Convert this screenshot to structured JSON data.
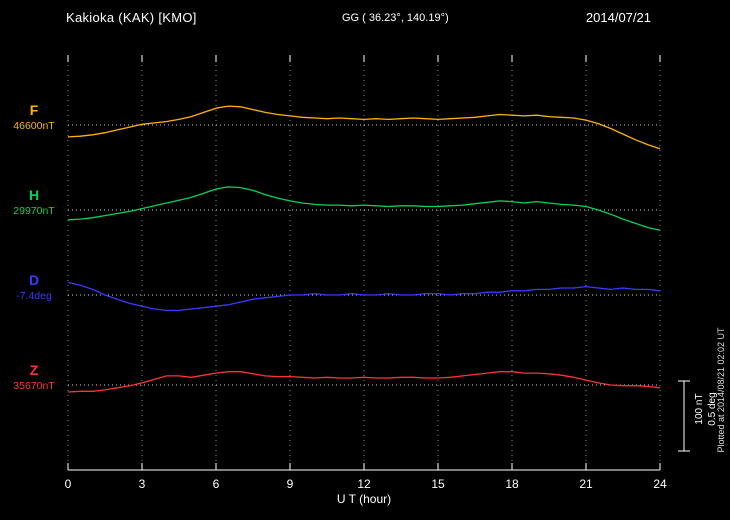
{
  "header": {
    "station": "Kakioka (KAK)  [KMO]",
    "coordinates": "GG ( 36.23°, 140.19°)",
    "date": "2014/07/21"
  },
  "axis": {
    "x_label": "U T (hour)",
    "ticks": [
      0,
      3,
      6,
      9,
      12,
      15,
      18,
      21,
      24
    ],
    "x_min": 0,
    "x_max": 24
  },
  "channels": [
    {
      "label": "F",
      "value_label": "46600nT",
      "color": "#ffb300"
    },
    {
      "label": "H",
      "value_label": "29970nT",
      "color": "#00d455"
    },
    {
      "label": "D",
      "value_label": "-7.4deg",
      "color": "#3a3aff"
    },
    {
      "label": "Z",
      "value_label": "35670nT",
      "color": "#ff3232"
    }
  ],
  "scale_bar": {
    "nt_label": "100 nT",
    "deg_label": "0.5 deg"
  },
  "footer_note": "Plotted at 2014/08/21 02:02 UT",
  "colors": {
    "background": "#000000",
    "text": "#ffffff",
    "gridline": "#8a8a8a",
    "baseline": "#cfcfcf"
  },
  "chart_data": {
    "type": "line",
    "title": "Kakioka (KAK) [KMO] magnetogram 2014/07/21",
    "xlabel": "U T (hour)",
    "x_unit": "hour UT",
    "x_range": [
      0,
      24
    ],
    "x_step": 0.5,
    "grid": "dotted vertical every 3 h, dotted horizontal baseline per channel",
    "scale": {
      "nT_per_division": 100,
      "deg_per_division": 0.5
    },
    "series": [
      {
        "name": "F",
        "unit": "nT",
        "baseline": 46600,
        "color": "#ffb300",
        "values": [
          46583,
          46584,
          46586,
          46589,
          46593,
          46597,
          46601,
          46603,
          46605,
          46608,
          46612,
          46618,
          46624,
          46627,
          46626,
          46622,
          46618,
          46615,
          46613,
          46611,
          46610,
          46609,
          46610,
          46609,
          46608,
          46609,
          46608,
          46609,
          46610,
          46609,
          46608,
          46609,
          46610,
          46611,
          46613,
          46615,
          46614,
          46613,
          46614,
          46612,
          46611,
          46610,
          46607,
          46602,
          46595,
          46587,
          46579,
          46572,
          46566
        ]
      },
      {
        "name": "H",
        "unit": "nT",
        "baseline": 29970,
        "color": "#00d455",
        "values": [
          29956,
          29957,
          29959,
          29962,
          29965,
          29968,
          29972,
          29976,
          29980,
          29984,
          29988,
          29994,
          30000,
          30003,
          30002,
          29998,
          29992,
          29987,
          29983,
          29980,
          29978,
          29977,
          29977,
          29976,
          29977,
          29976,
          29975,
          29976,
          29976,
          29975,
          29975,
          29976,
          29977,
          29979,
          29981,
          29983,
          29982,
          29980,
          29982,
          29980,
          29978,
          29977,
          29975,
          29970,
          29964,
          29957,
          29951,
          29945,
          29941
        ]
      },
      {
        "name": "D",
        "unit": "deg",
        "baseline": -7.4,
        "color": "#3a3aff",
        "values": [
          -7.31,
          -7.33,
          -7.36,
          -7.4,
          -7.43,
          -7.46,
          -7.48,
          -7.5,
          -7.51,
          -7.51,
          -7.5,
          -7.49,
          -7.48,
          -7.47,
          -7.45,
          -7.43,
          -7.42,
          -7.41,
          -7.4,
          -7.4,
          -7.39,
          -7.4,
          -7.4,
          -7.39,
          -7.4,
          -7.4,
          -7.39,
          -7.4,
          -7.4,
          -7.39,
          -7.39,
          -7.4,
          -7.39,
          -7.39,
          -7.38,
          -7.38,
          -7.37,
          -7.37,
          -7.36,
          -7.36,
          -7.35,
          -7.35,
          -7.34,
          -7.35,
          -7.36,
          -7.35,
          -7.36,
          -7.36,
          -7.37
        ]
      },
      {
        "name": "Z",
        "unit": "nT",
        "baseline": 35670,
        "color": "#ff3232",
        "values": [
          35660,
          35661,
          35661,
          35663,
          35666,
          35669,
          35673,
          35678,
          35683,
          35683,
          35681,
          35684,
          35687,
          35689,
          35689,
          35686,
          35683,
          35682,
          35682,
          35681,
          35680,
          35681,
          35680,
          35680,
          35681,
          35680,
          35680,
          35681,
          35681,
          35680,
          35680,
          35681,
          35683,
          35685,
          35687,
          35689,
          35689,
          35687,
          35687,
          35686,
          35684,
          35681,
          35677,
          35673,
          35670,
          35669,
          35669,
          35668,
          35666
        ]
      }
    ]
  }
}
